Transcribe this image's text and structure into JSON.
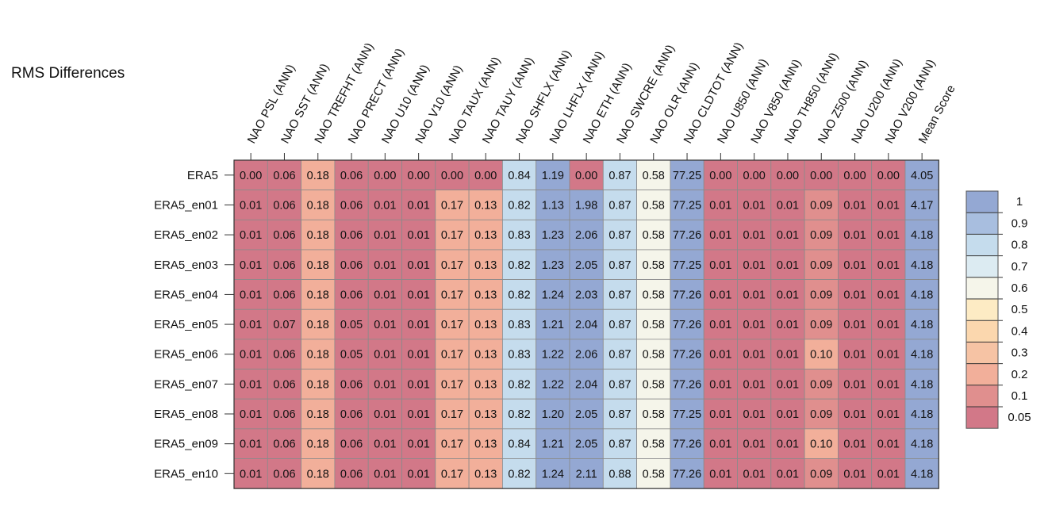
{
  "chart_data": {
    "type": "heatmap",
    "title": "RMS Differences",
    "columns": [
      "NAO PSL (ANN)",
      "NAO SST (ANN)",
      "NAO TREFHT (ANN)",
      "NAO PRECT (ANN)",
      "NAO U10 (ANN)",
      "NAO V10 (ANN)",
      "NAO TAUX (ANN)",
      "NAO TAUY (ANN)",
      "NAO SHFLX (ANN)",
      "NAO LHFLX (ANN)",
      "NAO ETH (ANN)",
      "NAO SWCRE (ANN)",
      "NAO OLR (ANN)",
      "NAO CLDTOT (ANN)",
      "NAO U850 (ANN)",
      "NAO V850 (ANN)",
      "NAO TH850 (ANN)",
      "NAO Z500 (ANN)",
      "NAO U200 (ANN)",
      "NAO V200 (ANN)",
      "Mean Score"
    ],
    "rows": [
      "ERA5",
      "ERA5_en01",
      "ERA5_en02",
      "ERA5_en03",
      "ERA5_en04",
      "ERA5_en05",
      "ERA5_en06",
      "ERA5_en07",
      "ERA5_en08",
      "ERA5_en09",
      "ERA5_en10"
    ],
    "values": [
      [
        0.0,
        0.06,
        0.18,
        0.06,
        0.0,
        0.0,
        0.0,
        0.0,
        0.84,
        1.19,
        0.0,
        0.87,
        0.58,
        77.25,
        0.0,
        0.0,
        0.0,
        0.0,
        0.0,
        0.0,
        4.05
      ],
      [
        0.01,
        0.06,
        0.18,
        0.06,
        0.01,
        0.01,
        0.17,
        0.13,
        0.82,
        1.13,
        1.98,
        0.87,
        0.58,
        77.25,
        0.01,
        0.01,
        0.01,
        0.09,
        0.01,
        0.01,
        4.17
      ],
      [
        0.01,
        0.06,
        0.18,
        0.06,
        0.01,
        0.01,
        0.17,
        0.13,
        0.83,
        1.23,
        2.06,
        0.87,
        0.58,
        77.26,
        0.01,
        0.01,
        0.01,
        0.09,
        0.01,
        0.01,
        4.18
      ],
      [
        0.01,
        0.06,
        0.18,
        0.06,
        0.01,
        0.01,
        0.17,
        0.13,
        0.82,
        1.23,
        2.05,
        0.87,
        0.58,
        77.25,
        0.01,
        0.01,
        0.01,
        0.09,
        0.01,
        0.01,
        4.18
      ],
      [
        0.01,
        0.06,
        0.18,
        0.06,
        0.01,
        0.01,
        0.17,
        0.13,
        0.82,
        1.24,
        2.03,
        0.87,
        0.58,
        77.26,
        0.01,
        0.01,
        0.01,
        0.09,
        0.01,
        0.01,
        4.18
      ],
      [
        0.01,
        0.07,
        0.18,
        0.05,
        0.01,
        0.01,
        0.17,
        0.13,
        0.83,
        1.21,
        2.04,
        0.87,
        0.58,
        77.26,
        0.01,
        0.01,
        0.01,
        0.09,
        0.01,
        0.01,
        4.18
      ],
      [
        0.01,
        0.06,
        0.18,
        0.05,
        0.01,
        0.01,
        0.17,
        0.13,
        0.83,
        1.22,
        2.06,
        0.87,
        0.58,
        77.26,
        0.01,
        0.01,
        0.01,
        0.1,
        0.01,
        0.01,
        4.18
      ],
      [
        0.01,
        0.06,
        0.18,
        0.06,
        0.01,
        0.01,
        0.17,
        0.13,
        0.82,
        1.22,
        2.04,
        0.87,
        0.58,
        77.26,
        0.01,
        0.01,
        0.01,
        0.09,
        0.01,
        0.01,
        4.18
      ],
      [
        0.01,
        0.06,
        0.18,
        0.06,
        0.01,
        0.01,
        0.17,
        0.13,
        0.82,
        1.2,
        2.05,
        0.87,
        0.58,
        77.25,
        0.01,
        0.01,
        0.01,
        0.09,
        0.01,
        0.01,
        4.18
      ],
      [
        0.01,
        0.06,
        0.18,
        0.06,
        0.01,
        0.01,
        0.17,
        0.13,
        0.84,
        1.21,
        2.05,
        0.87,
        0.58,
        77.26,
        0.01,
        0.01,
        0.01,
        0.1,
        0.01,
        0.01,
        4.18
      ],
      [
        0.01,
        0.06,
        0.18,
        0.06,
        0.01,
        0.01,
        0.17,
        0.13,
        0.82,
        1.24,
        2.11,
        0.88,
        0.58,
        77.26,
        0.01,
        0.01,
        0.01,
        0.09,
        0.01,
        0.01,
        4.18
      ]
    ],
    "cell_colors": [
      [
        "#d27888",
        "#d27888",
        "#f2af9a",
        "#d27888",
        "#d27888",
        "#d27888",
        "#d27888",
        "#d27888",
        "#c5dced",
        "#94a8d3",
        "#d27888",
        "#c5dced",
        "#f5f5ea",
        "#94a8d3",
        "#d27888",
        "#d27888",
        "#d27888",
        "#d27888",
        "#d27888",
        "#d27888",
        "#94a8d3"
      ],
      [
        "#d27888",
        "#d27888",
        "#f2af9a",
        "#d27888",
        "#d27888",
        "#d27888",
        "#f2af9a",
        "#f2af9a",
        "#c5dced",
        "#94a8d3",
        "#94a8d3",
        "#c5dced",
        "#f5f5ea",
        "#94a8d3",
        "#d27888",
        "#d27888",
        "#d27888",
        "#e08f8e",
        "#d27888",
        "#d27888",
        "#94a8d3"
      ],
      [
        "#d27888",
        "#d27888",
        "#f2af9a",
        "#d27888",
        "#d27888",
        "#d27888",
        "#f2af9a",
        "#f2af9a",
        "#c5dced",
        "#94a8d3",
        "#94a8d3",
        "#c5dced",
        "#f5f5ea",
        "#94a8d3",
        "#d27888",
        "#d27888",
        "#d27888",
        "#e08f8e",
        "#d27888",
        "#d27888",
        "#94a8d3"
      ],
      [
        "#d27888",
        "#d27888",
        "#f2af9a",
        "#d27888",
        "#d27888",
        "#d27888",
        "#f2af9a",
        "#f2af9a",
        "#c5dced",
        "#94a8d3",
        "#94a8d3",
        "#c5dced",
        "#f5f5ea",
        "#94a8d3",
        "#d27888",
        "#d27888",
        "#d27888",
        "#e08f8e",
        "#d27888",
        "#d27888",
        "#94a8d3"
      ],
      [
        "#d27888",
        "#d27888",
        "#f2af9a",
        "#d27888",
        "#d27888",
        "#d27888",
        "#f2af9a",
        "#f2af9a",
        "#c5dced",
        "#94a8d3",
        "#94a8d3",
        "#c5dced",
        "#f5f5ea",
        "#94a8d3",
        "#d27888",
        "#d27888",
        "#d27888",
        "#e08f8e",
        "#d27888",
        "#d27888",
        "#94a8d3"
      ],
      [
        "#d27888",
        "#d27888",
        "#f2af9a",
        "#d27888",
        "#d27888",
        "#d27888",
        "#f2af9a",
        "#f2af9a",
        "#c5dced",
        "#94a8d3",
        "#94a8d3",
        "#c5dced",
        "#f5f5ea",
        "#94a8d3",
        "#d27888",
        "#d27888",
        "#d27888",
        "#e08f8e",
        "#d27888",
        "#d27888",
        "#94a8d3"
      ],
      [
        "#d27888",
        "#d27888",
        "#f2af9a",
        "#d27888",
        "#d27888",
        "#d27888",
        "#f2af9a",
        "#f2af9a",
        "#c5dced",
        "#94a8d3",
        "#94a8d3",
        "#c5dced",
        "#f5f5ea",
        "#94a8d3",
        "#d27888",
        "#d27888",
        "#d27888",
        "#f2af9a",
        "#d27888",
        "#d27888",
        "#94a8d3"
      ],
      [
        "#d27888",
        "#d27888",
        "#f2af9a",
        "#d27888",
        "#d27888",
        "#d27888",
        "#f2af9a",
        "#f2af9a",
        "#c5dced",
        "#94a8d3",
        "#94a8d3",
        "#c5dced",
        "#f5f5ea",
        "#94a8d3",
        "#d27888",
        "#d27888",
        "#d27888",
        "#e08f8e",
        "#d27888",
        "#d27888",
        "#94a8d3"
      ],
      [
        "#d27888",
        "#d27888",
        "#f2af9a",
        "#d27888",
        "#d27888",
        "#d27888",
        "#f2af9a",
        "#f2af9a",
        "#c5dced",
        "#94a8d3",
        "#94a8d3",
        "#c5dced",
        "#f5f5ea",
        "#94a8d3",
        "#d27888",
        "#d27888",
        "#d27888",
        "#e08f8e",
        "#d27888",
        "#d27888",
        "#94a8d3"
      ],
      [
        "#d27888",
        "#d27888",
        "#f2af9a",
        "#d27888",
        "#d27888",
        "#d27888",
        "#f2af9a",
        "#f2af9a",
        "#c5dced",
        "#94a8d3",
        "#94a8d3",
        "#c5dced",
        "#f5f5ea",
        "#94a8d3",
        "#d27888",
        "#d27888",
        "#d27888",
        "#f2af9a",
        "#d27888",
        "#d27888",
        "#94a8d3"
      ],
      [
        "#d27888",
        "#d27888",
        "#f2af9a",
        "#d27888",
        "#d27888",
        "#d27888",
        "#f2af9a",
        "#f2af9a",
        "#c5dced",
        "#94a8d3",
        "#94a8d3",
        "#c5dced",
        "#f5f5ea",
        "#94a8d3",
        "#d27888",
        "#d27888",
        "#d27888",
        "#e08f8e",
        "#d27888",
        "#d27888",
        "#94a8d3"
      ]
    ],
    "colorbar": {
      "labels": [
        "1",
        "0.9",
        "0.8",
        "0.7",
        "0.6",
        "0.5",
        "0.4",
        "0.3",
        "0.2",
        "0.1",
        "0.05"
      ],
      "colors": [
        "#94a8d3",
        "#a8bedf",
        "#c5dced",
        "#dcebf2",
        "#f5f5ea",
        "#fdebc4",
        "#fbd7ae",
        "#f6c3a4",
        "#f2af9a",
        "#e08f8e",
        "#d27888"
      ]
    }
  }
}
